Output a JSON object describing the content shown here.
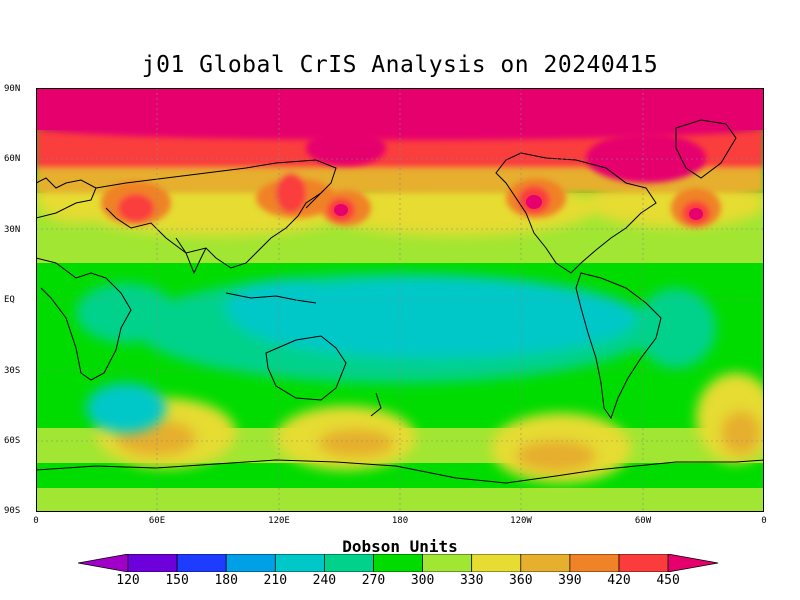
{
  "title": "j01 Global CrIS Analysis on 20240415",
  "lat_labels": [
    "90N",
    "60N",
    "30N",
    "EQ",
    "30S",
    "60S",
    "90S"
  ],
  "lon_labels": [
    "0",
    "60E",
    "120E",
    "180",
    "120W",
    "60W",
    "0"
  ],
  "colorbar": {
    "title": "Dobson Units",
    "ticks": [
      "120",
      "150",
      "180",
      "210",
      "240",
      "270",
      "300",
      "330",
      "360",
      "390",
      "420",
      "450"
    ],
    "colors": [
      "#a000c8",
      "#6e00dc",
      "#1e3cff",
      "#00a0e6",
      "#00c8c8",
      "#00d28c",
      "#00dc00",
      "#a0e632",
      "#e6dc32",
      "#e6af2d",
      "#f08228",
      "#fa3c3c",
      "#e6006e"
    ]
  },
  "map": {
    "background_color": "#00dc00",
    "features": [
      {
        "name": "polar-high-north",
        "color": "#e6006e"
      },
      {
        "name": "high-ozone-band-north",
        "color": "#fa3c3c"
      },
      {
        "name": "mid-latitude-ozone-north",
        "color": "#e6dc32"
      },
      {
        "name": "tropical-low-ozone",
        "color": "#00c8c8"
      },
      {
        "name": "southern-ozone-ridge",
        "color": "#e6af2d"
      },
      {
        "name": "antarctic-band",
        "color": "#a0e632"
      }
    ]
  }
}
